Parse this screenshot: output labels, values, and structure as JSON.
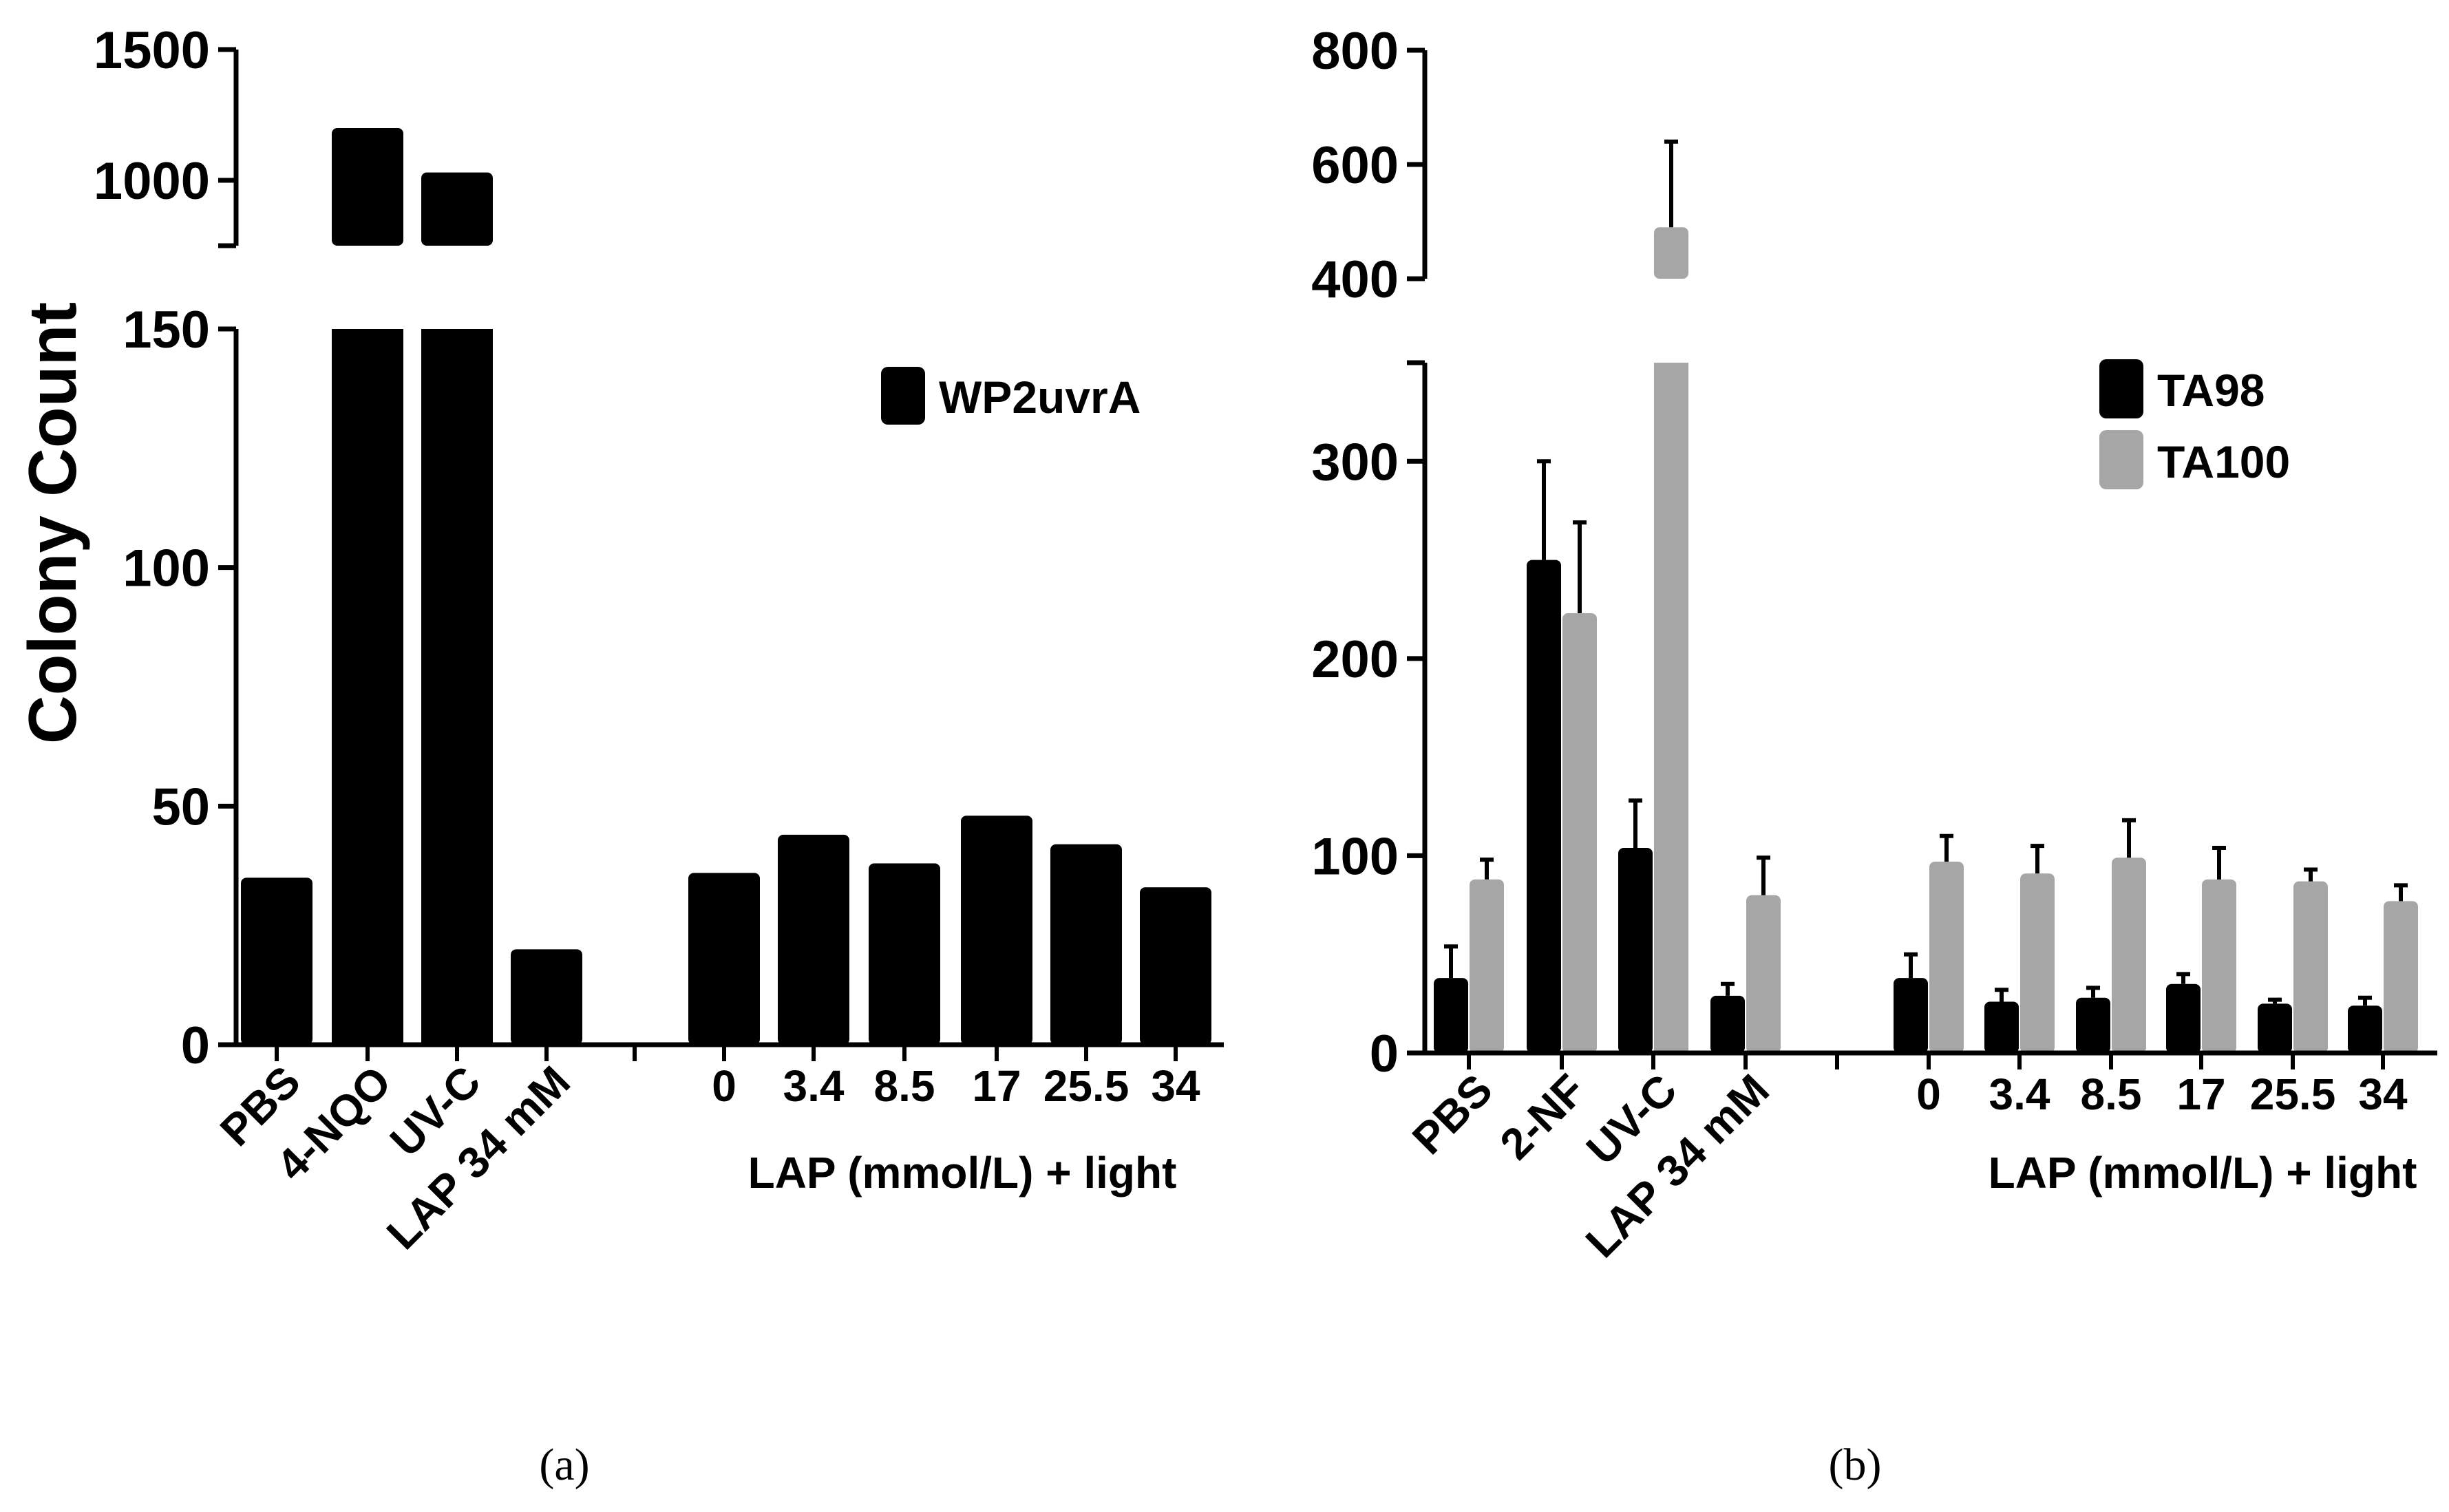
{
  "colors": {
    "black": "#000000",
    "grey": "#a6a6a6"
  },
  "chart_data": [
    {
      "type": "bar",
      "panel_label": "(a)",
      "ylabel": "Colony  Count",
      "xlabel": "LAP (mmol/L) + light",
      "axis_break": true,
      "ylim_lower": [
        0,
        150
      ],
      "ylim_upper": [
        750,
        1500
      ],
      "yticks_lower": [
        "0",
        "50",
        "100",
        "150"
      ],
      "yticks_upper": [
        "1000",
        "1500"
      ],
      "categories": [
        "PBS",
        "4-NQO",
        "UV-C",
        "LAP 34 mM",
        "0",
        "3.4",
        "8.5",
        "17",
        "25.5",
        "34"
      ],
      "series": [
        {
          "name": "WP2uvrA",
          "color": "#000000",
          "values": [
            35,
            1200,
            1030,
            20,
            36,
            44,
            38,
            48,
            42,
            33
          ]
        }
      ],
      "legend": [
        "WP2uvrA"
      ],
      "legend_position": "top-right"
    },
    {
      "type": "bar",
      "panel_label": "(b)",
      "xlabel": "LAP (mmol/L) + light",
      "axis_break": true,
      "ylim_lower": [
        0,
        350
      ],
      "ylim_upper": [
        400,
        800
      ],
      "yticks_lower": [
        "0",
        "100",
        "200",
        "300"
      ],
      "yticks_upper": [
        "400",
        "600",
        "800"
      ],
      "categories": [
        "PBS",
        "2-NF",
        "UV-C",
        "LAP 34 mM",
        "0",
        "3.4",
        "8.5",
        "17",
        "25.5",
        "34"
      ],
      "series": [
        {
          "name": "TA98",
          "color": "#000000",
          "values": [
            38,
            250,
            104,
            29,
            38,
            26,
            28,
            35,
            25,
            24
          ],
          "errors": [
            16,
            50,
            24,
            6,
            12,
            6,
            5,
            5,
            2,
            4
          ]
        },
        {
          "name": "TA100",
          "color": "#a6a6a6",
          "values": [
            88,
            223,
            490,
            80,
            97,
            91,
            99,
            88,
            87,
            77
          ],
          "errors": [
            10,
            46,
            150,
            19,
            13,
            14,
            19,
            16,
            6,
            8
          ]
        }
      ],
      "legend": [
        "TA98",
        "TA100"
      ],
      "legend_position": "top-right"
    }
  ]
}
